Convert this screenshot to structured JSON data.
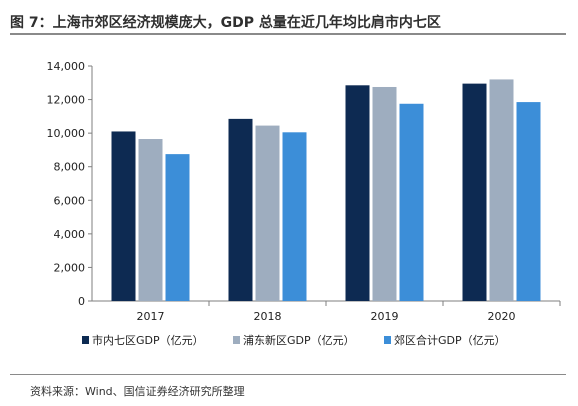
{
  "figure": {
    "title": "图 7：上海市郊区经济规模庞大，GDP 总量在近几年均比肩市内七区",
    "source": "资料来源：Wind、国信证券经济研究所整理"
  },
  "chart_data": {
    "type": "bar",
    "categories": [
      "2017",
      "2018",
      "2019",
      "2020"
    ],
    "series": [
      {
        "name": "市内七区GDP（亿元）",
        "color": "#0d2a52",
        "values": [
          10100,
          10850,
          12850,
          12950
        ]
      },
      {
        "name": "浦东新区GDP（亿元）",
        "color": "#9eadbf",
        "values": [
          9650,
          10450,
          12750,
          13200
        ]
      },
      {
        "name": "郊区合计GDP（亿元）",
        "color": "#3c8ed8",
        "values": [
          8750,
          10050,
          11750,
          11850
        ]
      }
    ],
    "ylim": [
      0,
      14000
    ],
    "yticks": [
      0,
      2000,
      4000,
      6000,
      8000,
      10000,
      12000,
      14000
    ],
    "ytick_labels": [
      "0",
      "2,000",
      "4,000",
      "6,000",
      "8,000",
      "10,000",
      "12,000",
      "14,000"
    ],
    "grid": false,
    "legend_position": "bottom"
  }
}
